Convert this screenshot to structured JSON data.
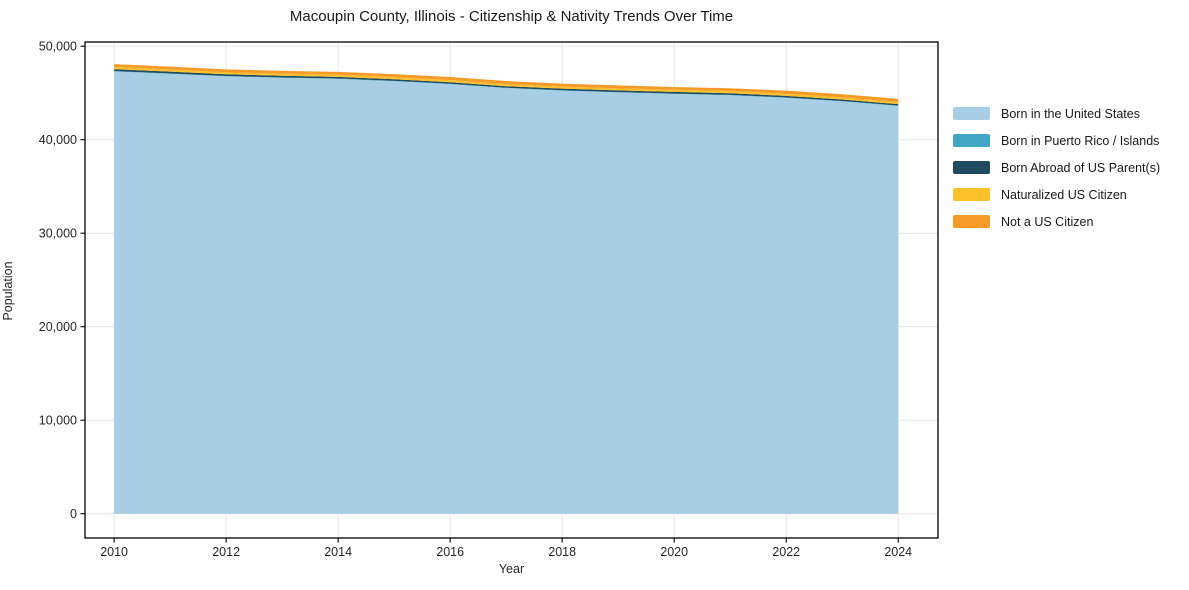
{
  "chart": {
    "title": "Macoupin County, Illinois - Citizenship & Nativity Trends Over Time",
    "xlabel": "Year",
    "ylabel": "Population"
  },
  "chart_data": {
    "type": "area",
    "stacked": true,
    "title": "Macoupin County, Illinois - Citizenship & Nativity Trends Over Time",
    "xlabel": "Year",
    "ylabel": "Population",
    "grid": true,
    "legend_position": "right-outside",
    "x": [
      2010,
      2011,
      2012,
      2013,
      2014,
      2015,
      2016,
      2017,
      2018,
      2019,
      2020,
      2021,
      2022,
      2023,
      2024
    ],
    "series": [
      {
        "name": "Born in the United States",
        "color": "#a7cee4",
        "values": [
          47300,
          47050,
          46780,
          46620,
          46500,
          46260,
          45950,
          45520,
          45250,
          45060,
          44900,
          44760,
          44480,
          44100,
          43620
        ]
      },
      {
        "name": "Born in Puerto Rico / Islands",
        "color": "#41a7c4",
        "values": [
          40,
          35,
          30,
          35,
          40,
          35,
          30,
          35,
          40,
          35,
          30,
          35,
          40,
          35,
          30
        ]
      },
      {
        "name": "Born Abroad of US Parent(s)",
        "color": "#1f4b63",
        "values": [
          200,
          195,
          190,
          185,
          180,
          175,
          170,
          165,
          170,
          175,
          180,
          175,
          170,
          160,
          150
        ]
      },
      {
        "name": "Naturalized US Citizen",
        "color": "#fcc02a",
        "values": [
          230,
          225,
          220,
          225,
          230,
          235,
          230,
          225,
          220,
          225,
          230,
          235,
          240,
          235,
          230
        ]
      },
      {
        "name": "Not a US Citizen",
        "color": "#f79a28",
        "values": [
          320,
          310,
          300,
          295,
          300,
          310,
          320,
          330,
          320,
          310,
          300,
          305,
          315,
          330,
          340
        ]
      }
    ],
    "xlim": [
      2009.48,
      2024.71
    ],
    "ylim": [
      -2600,
      50450
    ],
    "x_ticks": [
      2010,
      2012,
      2014,
      2016,
      2018,
      2020,
      2022,
      2024
    ],
    "x_tick_labels": [
      "2010",
      "2012",
      "2014",
      "2016",
      "2018",
      "2020",
      "2022",
      "2024"
    ],
    "y_ticks": [
      0,
      10000,
      20000,
      30000,
      40000,
      50000
    ],
    "y_tick_labels": [
      "0",
      "10,000",
      "20,000",
      "30,000",
      "40,000",
      "50,000"
    ],
    "colors": {
      "grid": "#e6e6e6",
      "spine": "#000000",
      "tick_label": "#262626",
      "background": "#ffffff"
    }
  }
}
